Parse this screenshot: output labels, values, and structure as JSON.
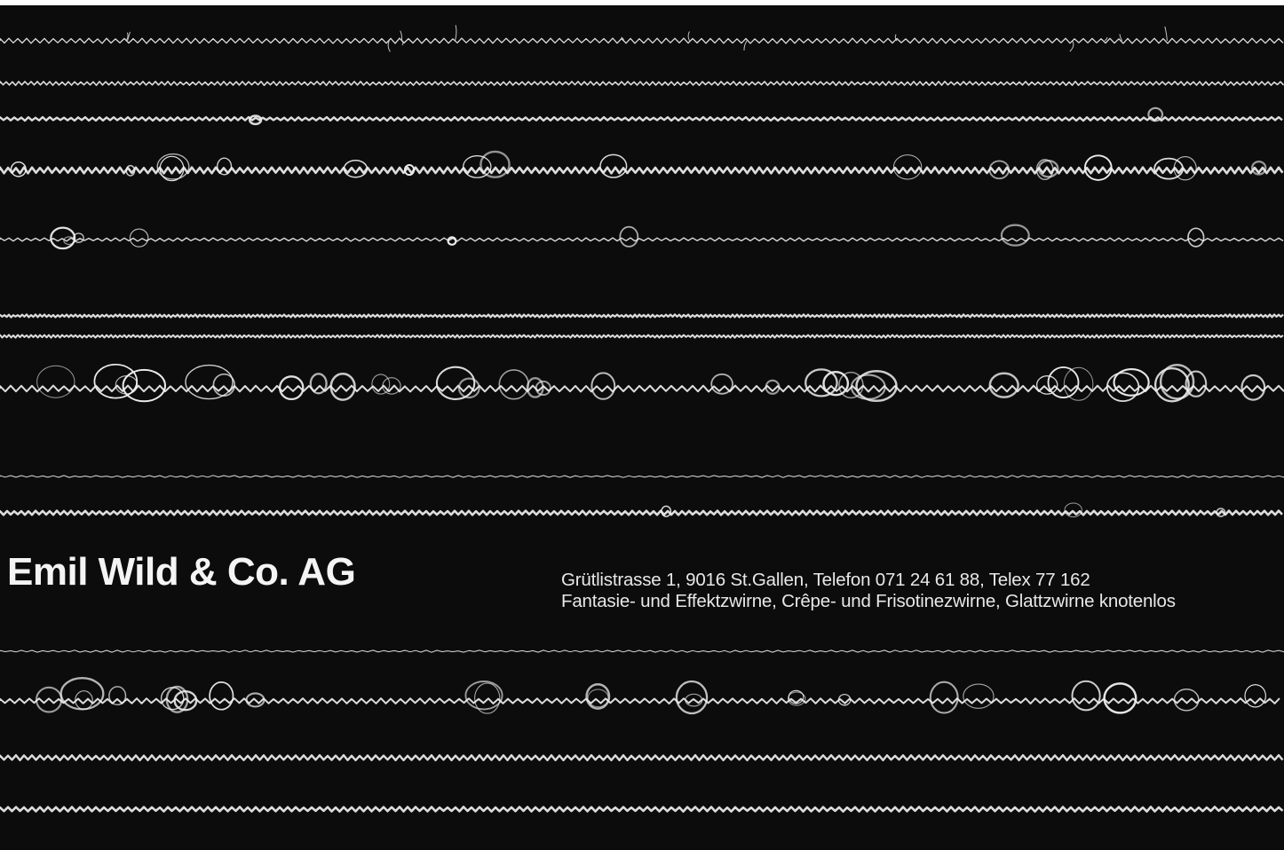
{
  "company": {
    "name": "Emil Wild & Co. AG",
    "address_line": "Grütlistrasse 1, 9016 St.Gallen, Telefon 071 24 61 88, Telex 77 162",
    "products_line": "Fantasie- und Effektzwirne, Crêpe- und Frisotinezwirne, Glattzwirne knotenlos"
  },
  "colors": {
    "background": "#0c0c0c",
    "yarn": "#efefef",
    "text": "#f4f4f4"
  }
}
